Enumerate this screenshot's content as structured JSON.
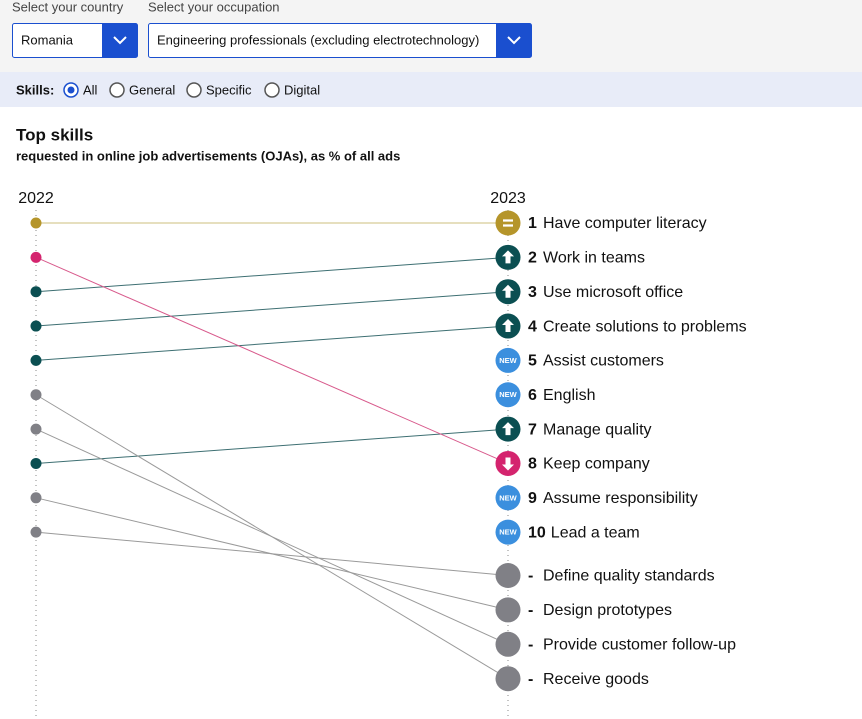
{
  "controls": {
    "country_label": "Select your country",
    "country": "Romania",
    "occupation_label": "Select your occupation",
    "occupation": "Engineering professionals (excluding electrotechnology)",
    "skills_label": "Skills:",
    "skill_options": [
      "All",
      "General",
      "Specific",
      "Digital"
    ],
    "selected_skill": 0
  },
  "chart_data": {
    "type": "slope",
    "title": "Top skills",
    "subtitle": "requested in online job advertisements (OJAs), as % of all ads",
    "left_label": "2022",
    "right_label": "2023",
    "new_badge": "NEW",
    "status_colors": {
      "same": "#b5952a",
      "up": "#0b4f52",
      "new": "#3b8fde",
      "down": "#d4246e",
      "dropped": "#808086"
    },
    "items": [
      {
        "rank": 1,
        "label": "Have computer literacy",
        "status": "same",
        "rank_2022": 1
      },
      {
        "rank": 2,
        "label": "Work in teams",
        "status": "up",
        "rank_2022": 3
      },
      {
        "rank": 3,
        "label": "Use microsoft office",
        "status": "up",
        "rank_2022": 4
      },
      {
        "rank": 4,
        "label": "Create solutions to problems",
        "status": "up",
        "rank_2022": 5
      },
      {
        "rank": 5,
        "label": "Assist customers",
        "status": "new",
        "rank_2022": null
      },
      {
        "rank": 6,
        "label": "English",
        "status": "new",
        "rank_2022": null
      },
      {
        "rank": 7,
        "label": "Manage quality",
        "status": "up",
        "rank_2022": 8
      },
      {
        "rank": 8,
        "label": "Keep company",
        "status": "down",
        "rank_2022": 2
      },
      {
        "rank": 9,
        "label": "Assume responsibility",
        "status": "new",
        "rank_2022": null
      },
      {
        "rank": 10,
        "label": "Lead a team",
        "status": "new",
        "rank_2022": null
      },
      {
        "rank": "-",
        "label": "Define quality standards",
        "status": "dropped",
        "rank_2022": 10
      },
      {
        "rank": "-",
        "label": "Design prototypes",
        "status": "dropped",
        "rank_2022": 9
      },
      {
        "rank": "-",
        "label": "Provide customer follow-up",
        "status": "dropped",
        "rank_2022": 7
      },
      {
        "rank": "-",
        "label": "Receive goods",
        "status": "dropped",
        "rank_2022": 6
      }
    ]
  }
}
